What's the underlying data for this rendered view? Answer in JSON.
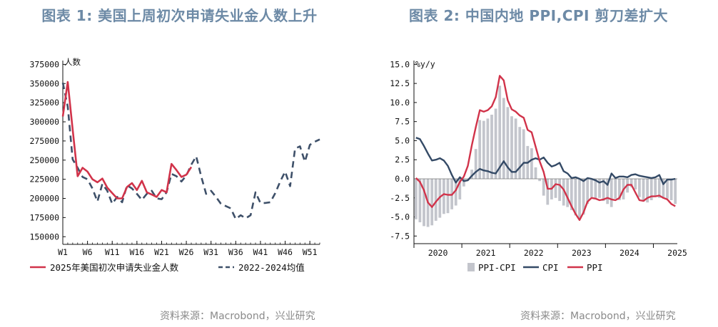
{
  "charts": [
    {
      "title": "图表 1:  美国上周初次申请失业金人数上升",
      "source": "资料来源：Macrobond，兴业研究",
      "chart_data": {
        "type": "line",
        "ylabel": "人数",
        "ylim": [
          140000,
          380000
        ],
        "yticks": [
          150000,
          175000,
          200000,
          225000,
          250000,
          275000,
          300000,
          325000,
          350000,
          375000
        ],
        "xlim": [
          1,
          53
        ],
        "xticks": [
          "W1",
          "W6",
          "W11",
          "W16",
          "W21",
          "W26",
          "W31",
          "W36",
          "W41",
          "W46",
          "W51"
        ],
        "xtick_values": [
          1,
          6,
          11,
          16,
          21,
          26,
          31,
          36,
          41,
          46,
          51
        ],
        "legend_position": "bottom",
        "series": [
          {
            "name": "2025年美国初次申请失业金人数",
            "color": "#d1334a",
            "style": "solid",
            "x": [
              1,
              2,
              3,
              4,
              5,
              6,
              7,
              8,
              9,
              10,
              11,
              12,
              13,
              14,
              15,
              16,
              17,
              18,
              19,
              20,
              21,
              22,
              23,
              24,
              25,
              26,
              27
            ],
            "y": [
              307000,
              352000,
              290000,
              229000,
              240000,
              235000,
              225000,
              221000,
              226000,
              214000,
              207000,
              200000,
              200000,
              215000,
              220000,
              211000,
              223000,
              208000,
              205000,
              202000,
              211000,
              208000,
              245000,
              237000,
              228000,
              231000,
              241000
            ]
          },
          {
            "name": "2022-2024均值",
            "color": "#3e5069",
            "style": "dashed",
            "x": [
              1,
              2,
              3,
              4,
              5,
              6,
              7,
              8,
              9,
              10,
              11,
              12,
              13,
              14,
              15,
              16,
              17,
              18,
              19,
              20,
              21,
              22,
              23,
              24,
              25,
              26,
              27,
              28,
              29,
              30,
              31,
              32,
              33,
              34,
              35,
              36,
              37,
              38,
              39,
              40,
              41,
              42,
              43,
              44,
              45,
              46,
              47,
              48,
              49,
              50,
              51,
              52,
              53
            ],
            "y": [
              351000,
              320000,
              251000,
              240000,
              228000,
              225000,
              213000,
              196000,
              219000,
              210000,
              193000,
              202000,
              195000,
              217000,
              213000,
              206000,
              198000,
              206000,
              210000,
              200000,
              199000,
              208000,
              232000,
              229000,
              222000,
              230000,
              244000,
              255000,
              229000,
              206000,
              210000,
              202000,
              193000,
              190000,
              187000,
              173000,
              178000,
              174000,
              178000,
              208000,
              194000,
              194000,
              195000,
              207000,
              222000,
              235000,
              216000,
              265000,
              268000,
              248000,
              270000,
              274000,
              277000
            ]
          }
        ]
      }
    },
    {
      "title": "图表 2:  中国内地 PPI,CPI 剪刀差扩大",
      "source": "资料来源：Macrobond，兴业研究",
      "chart_data": {
        "type": "bar",
        "ylabel": "%y/y",
        "ylim": [
          -8.5,
          15.5
        ],
        "yticks": [
          -7.5,
          -5.0,
          -2.5,
          0.0,
          2.5,
          5.0,
          7.5,
          10.0,
          12.5,
          15.0
        ],
        "xlabels": [
          "2020",
          "2021",
          "2022",
          "2023",
          "2024",
          "2025"
        ],
        "xlabel_month_index": [
          6,
          18,
          30,
          42,
          54,
          66
        ],
        "legend_position": "bottom",
        "series": [
          {
            "name": "PPI-CPI",
            "color": "#c3c5cc",
            "style": "bar",
            "values": [
              -5.3,
              -5.7,
              -6.2,
              -6.3,
              -6.1,
              -5.5,
              -5.1,
              -4.6,
              -4.5,
              -4.0,
              -3.5,
              -2.7,
              -1.0,
              0.0,
              1.2,
              3.9,
              7.7,
              7.6,
              7.9,
              8.4,
              9.2,
              12.2,
              10.6,
              9.4,
              8.2,
              7.9,
              6.8,
              6.5,
              4.3,
              4.0,
              1.5,
              -0.3,
              -2.2,
              -3.4,
              -2.7,
              -2.5,
              -2.9,
              -3.5,
              -3.7,
              -4.1,
              -4.8,
              -5.2,
              -4.7,
              -3.3,
              -2.4,
              -2.6,
              -2.5,
              -2.9,
              -3.3,
              -3.7,
              -2.6,
              -2.8,
              -2.7,
              -1.8,
              -1.1,
              -1.4,
              -2.4,
              -3.0,
              -3.1,
              -2.8,
              -2.3,
              -2.5,
              -2.5,
              -2.6,
              -2.8,
              -3.3
            ]
          },
          {
            "name": "CPI",
            "color": "#344a66",
            "style": "solid",
            "values": [
              5.4,
              5.2,
              4.3,
              3.3,
              2.4,
              2.5,
              2.7,
              2.4,
              1.7,
              0.5,
              -0.5,
              0.2,
              -0.3,
              -0.2,
              0.4,
              0.9,
              1.3,
              1.1,
              1.0,
              0.8,
              0.7,
              1.5,
              2.3,
              1.5,
              0.9,
              0.9,
              1.5,
              2.1,
              2.1,
              2.5,
              2.7,
              2.5,
              2.8,
              2.1,
              1.6,
              1.8,
              2.1,
              1.0,
              0.7,
              0.1,
              0.2,
              0.0,
              -0.3,
              0.1,
              0.0,
              -0.2,
              -0.5,
              -0.3,
              -0.8,
              0.7,
              0.1,
              0.3,
              0.3,
              0.2,
              0.5,
              0.6,
              0.4,
              0.3,
              0.2,
              0.1,
              0.2,
              0.5,
              -0.7,
              -0.1,
              -0.1,
              0.0
            ]
          },
          {
            "name": "PPI",
            "color": "#d1334a",
            "style": "solid",
            "values": [
              0.1,
              -0.4,
              -1.5,
              -3.1,
              -3.7,
              -3.0,
              -2.4,
              -2.0,
              -2.1,
              -2.1,
              -1.5,
              -0.4,
              0.3,
              1.7,
              4.4,
              6.8,
              9.0,
              8.8,
              9.0,
              9.5,
              10.7,
              13.5,
              12.9,
              10.3,
              9.1,
              8.8,
              8.3,
              8.0,
              6.4,
              6.1,
              4.2,
              2.3,
              0.9,
              -1.3,
              -1.3,
              -0.7,
              -0.8,
              -1.4,
              -2.5,
              -3.6,
              -4.6,
              -5.4,
              -4.4,
              -3.0,
              -2.5,
              -2.6,
              -2.8,
              -2.7,
              -2.5,
              -2.7,
              -2.8,
              -2.5,
              -1.4,
              -0.8,
              -0.8,
              -1.8,
              -2.8,
              -2.9,
              -2.5,
              -2.3,
              -2.3,
              -2.2,
              -2.5,
              -2.7,
              -3.3,
              -3.6
            ]
          }
        ]
      }
    }
  ]
}
